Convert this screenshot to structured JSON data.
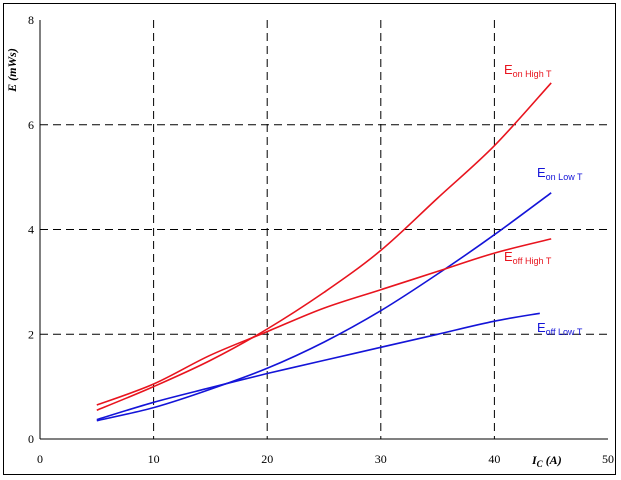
{
  "chart_data": {
    "type": "line",
    "xlabel_main": "I",
    "xlabel_sub": "C",
    "xlabel_unit": " (A)",
    "ylabel": "E (mWs)",
    "xlim": [
      0,
      50
    ],
    "ylim": [
      0,
      8
    ],
    "x_ticks": [
      0,
      10,
      20,
      30,
      40,
      50
    ],
    "y_ticks": [
      0,
      2,
      4,
      6,
      8
    ],
    "grid": true,
    "series": [
      {
        "name_main": "E",
        "name_sub": "on High T",
        "color": "#e8141e",
        "x": [
          5,
          10,
          15,
          20,
          25,
          30,
          35,
          40,
          45
        ],
        "y": [
          0.55,
          1.0,
          1.5,
          2.1,
          2.8,
          3.6,
          4.6,
          5.6,
          6.8
        ]
      },
      {
        "name_main": "E",
        "name_sub": "on Low T",
        "color": "#1414d8",
        "x": [
          5,
          10,
          15,
          20,
          25,
          30,
          35,
          40,
          45
        ],
        "y": [
          0.35,
          0.6,
          0.95,
          1.35,
          1.85,
          2.45,
          3.15,
          3.9,
          4.7
        ]
      },
      {
        "name_main": "E",
        "name_sub": "off High T",
        "color": "#e8141e",
        "x": [
          5,
          10,
          15,
          20,
          25,
          30,
          35,
          40,
          45
        ],
        "y": [
          0.65,
          1.05,
          1.6,
          2.05,
          2.5,
          2.85,
          3.2,
          3.55,
          3.82
        ]
      },
      {
        "name_main": "E",
        "name_sub": "off Low T",
        "color": "#1414d8",
        "x": [
          5,
          10,
          15,
          20,
          25,
          30,
          35,
          40,
          44
        ],
        "y": [
          0.37,
          0.7,
          0.98,
          1.25,
          1.5,
          1.75,
          2.0,
          2.25,
          2.4
        ]
      }
    ]
  }
}
